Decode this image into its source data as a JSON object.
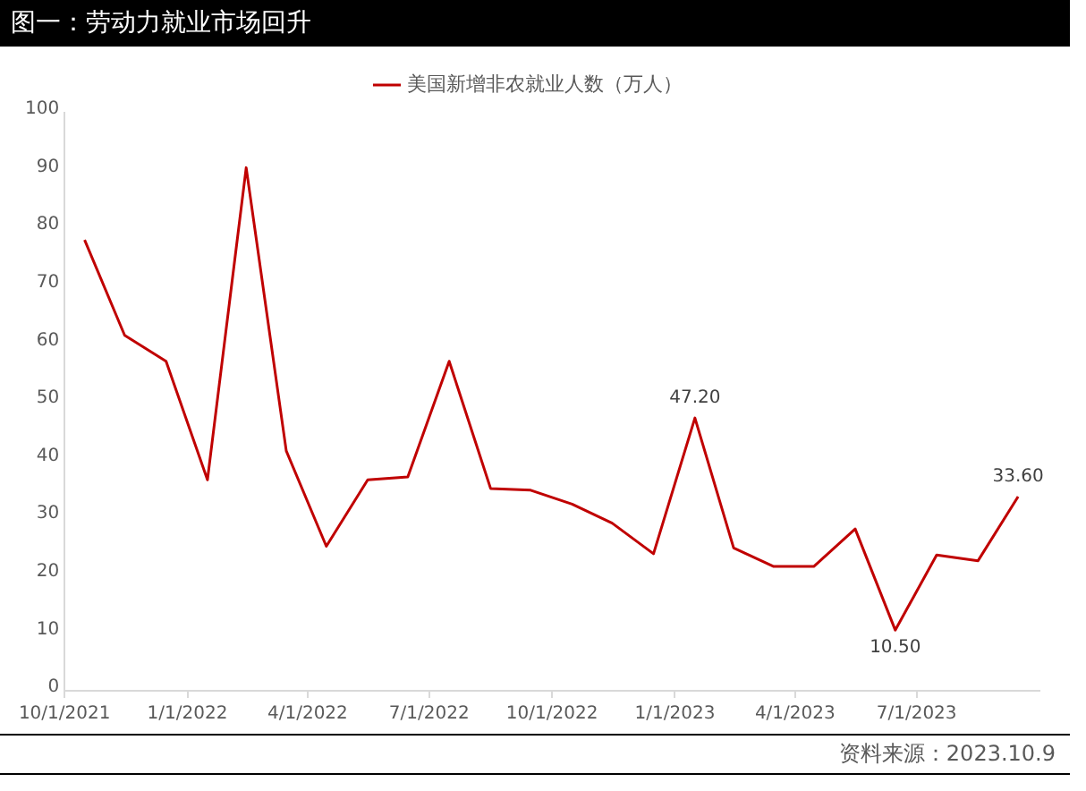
{
  "chart_data": {
    "type": "line",
    "title": "图一：劳动力就业市场回升",
    "annotations": [
      "资料来源：2023.10.9"
    ],
    "x": [
      "2021-10-16",
      "2021-11-15",
      "2021-12-16",
      "2022-01-16",
      "2022-02-14",
      "2022-03-16",
      "2022-04-15",
      "2022-05-16",
      "2022-06-15",
      "2022-07-16",
      "2022-08-16",
      "2022-09-15",
      "2022-10-16",
      "2022-11-15",
      "2022-12-16",
      "2023-01-16",
      "2023-02-14",
      "2023-03-16",
      "2023-04-15",
      "2023-05-16",
      "2023-06-15",
      "2023-07-16",
      "2023-08-16",
      "2023-09-15"
    ],
    "series": [
      {
        "name": "美国新增非农就业人数（万人）",
        "color": "#c00000",
        "values": [
          78,
          61.5,
          57,
          36.5,
          90.5,
          41.5,
          25,
          36.5,
          37,
          57,
          35,
          34.7,
          32.3,
          29,
          23.7,
          47.2,
          24.7,
          21.5,
          21.5,
          28,
          10.5,
          23.5,
          22.5,
          33.6
        ],
        "value_labels": [
          null,
          null,
          null,
          null,
          null,
          null,
          null,
          null,
          null,
          null,
          null,
          null,
          null,
          null,
          null,
          "47.20",
          null,
          null,
          null,
          null,
          "10.50",
          null,
          null,
          "33.60"
        ]
      }
    ],
    "xlim": [
      "2021-10-01",
      "2023-10-01"
    ],
    "xticks": [
      {
        "value": "2021-10-01",
        "label": "10/1/2021"
      },
      {
        "value": "2022-01-01",
        "label": "1/1/2022"
      },
      {
        "value": "2022-04-01",
        "label": "4/1/2022"
      },
      {
        "value": "2022-07-01",
        "label": "7/1/2022"
      },
      {
        "value": "2022-10-01",
        "label": "10/1/2022"
      },
      {
        "value": "2023-01-01",
        "label": "1/1/2023"
      },
      {
        "value": "2023-04-01",
        "label": "4/1/2023"
      },
      {
        "value": "2023-07-01",
        "label": "7/1/2023"
      }
    ],
    "ylim": [
      0,
      100
    ],
    "yticks": [
      0,
      10,
      20,
      30,
      40,
      50,
      60,
      70,
      80,
      90,
      100
    ],
    "grid": false,
    "legend": "top",
    "marker": "none",
    "line_style": "solid"
  }
}
